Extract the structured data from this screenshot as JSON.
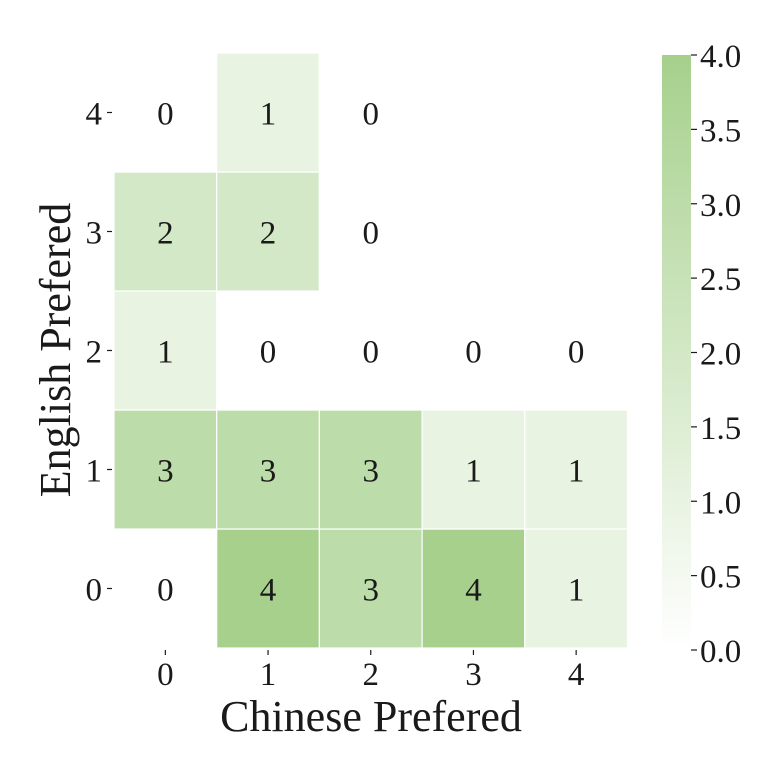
{
  "chart_data": {
    "type": "heatmap",
    "xlabel": "Chinese Prefered",
    "ylabel": "English Prefered",
    "x_categories": [
      "0",
      "1",
      "2",
      "3",
      "4"
    ],
    "y_categories": [
      "0",
      "1",
      "2",
      "3",
      "4"
    ],
    "values": [
      [
        0,
        4,
        3,
        4,
        1
      ],
      [
        3,
        3,
        3,
        1,
        1
      ],
      [
        1,
        0,
        0,
        0,
        0
      ],
      [
        2,
        2,
        0,
        null,
        null
      ],
      [
        0,
        1,
        0,
        null,
        null
      ]
    ],
    "value_rows_note_order": "rows indexed by English Prefered 0..4, columns by Chinese Prefered 0..4",
    "colorbar": {
      "min": 0.0,
      "max": 4.0,
      "ticks": [
        "0.0",
        "0.5",
        "1.0",
        "1.5",
        "2.0",
        "2.5",
        "3.0",
        "3.5",
        "4.0"
      ]
    },
    "colors": {
      "low": "#ffffff",
      "high": "#a6d08c",
      "grid_line": "#ffffff",
      "text": "#1a1a1a"
    }
  }
}
